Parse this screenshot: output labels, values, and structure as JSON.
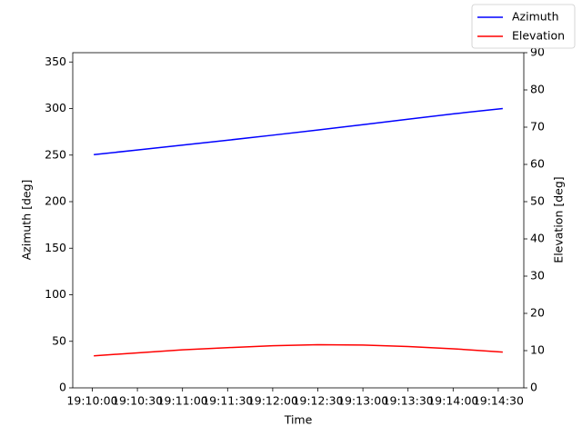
{
  "chart_data": {
    "type": "line",
    "xlabel": "Time",
    "ylabel": "Azimuth [deg]",
    "y2label": "Elevation [deg]",
    "x": [
      "19:10:01",
      "19:10:30",
      "19:11:00",
      "19:11:30",
      "19:12:00",
      "19:12:30",
      "19:13:00",
      "19:13:30",
      "19:14:00",
      "19:14:33"
    ],
    "series": [
      {
        "name": "Azimuth",
        "color": "#0000ff",
        "values": [
          250.5,
          255.5,
          260.7,
          266,
          271.4,
          277,
          282.7,
          288.5,
          294.3,
          300
        ]
      },
      {
        "name": "Elevation",
        "color": "#ff0000",
        "axis": "y2",
        "values": [
          8.6,
          9.4,
          10.2,
          10.8,
          11.3,
          11.6,
          11.5,
          11.1,
          10.5,
          9.6
        ]
      }
    ],
    "xlim": [
      "19:09:47",
      "19:14:47"
    ],
    "xticks": [
      "19:10:00",
      "19:10:30",
      "19:11:00",
      "19:11:30",
      "19:12:00",
      "19:12:30",
      "19:13:00",
      "19:13:30",
      "19:14:00",
      "19:14:30"
    ],
    "ylim": [
      0,
      360
    ],
    "yticks": [
      0,
      50,
      100,
      150,
      200,
      250,
      300,
      350
    ],
    "y2lim": [
      0,
      90
    ],
    "y2ticks": [
      0,
      10,
      20,
      30,
      40,
      50,
      60,
      70,
      80,
      90
    ],
    "legend": "upper right",
    "grid": false
  }
}
